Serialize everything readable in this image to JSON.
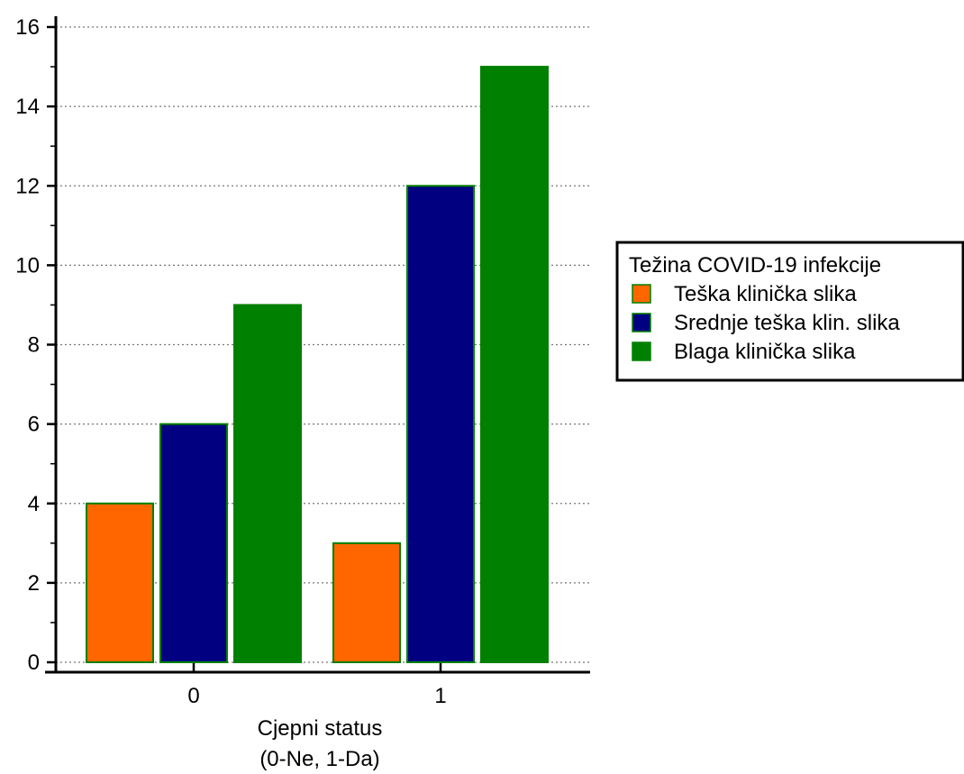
{
  "chart_data": {
    "type": "bar",
    "categories": [
      "0",
      "1"
    ],
    "series": [
      {
        "name": "Teška klinička slika",
        "values": [
          4,
          3
        ],
        "color": "#FF6600"
      },
      {
        "name": "Srednje teška klin. slika",
        "values": [
          6,
          12
        ],
        "color": "#000080"
      },
      {
        "name": "Blaga klinička slika",
        "values": [
          9,
          15
        ],
        "color": "#008000"
      }
    ],
    "bar_edge_color": "#008000",
    "title": "",
    "xlabel": [
      "Cjepni status",
      "(0-Ne, 1-Da)"
    ],
    "ylabel": "",
    "ylim": [
      0,
      16
    ],
    "yticks": [
      0,
      2,
      4,
      6,
      8,
      10,
      12,
      14,
      16
    ],
    "grid": "horizontal-dotted",
    "legend": {
      "title": "Težina COVID-19 infekcije",
      "placement": "right"
    }
  }
}
